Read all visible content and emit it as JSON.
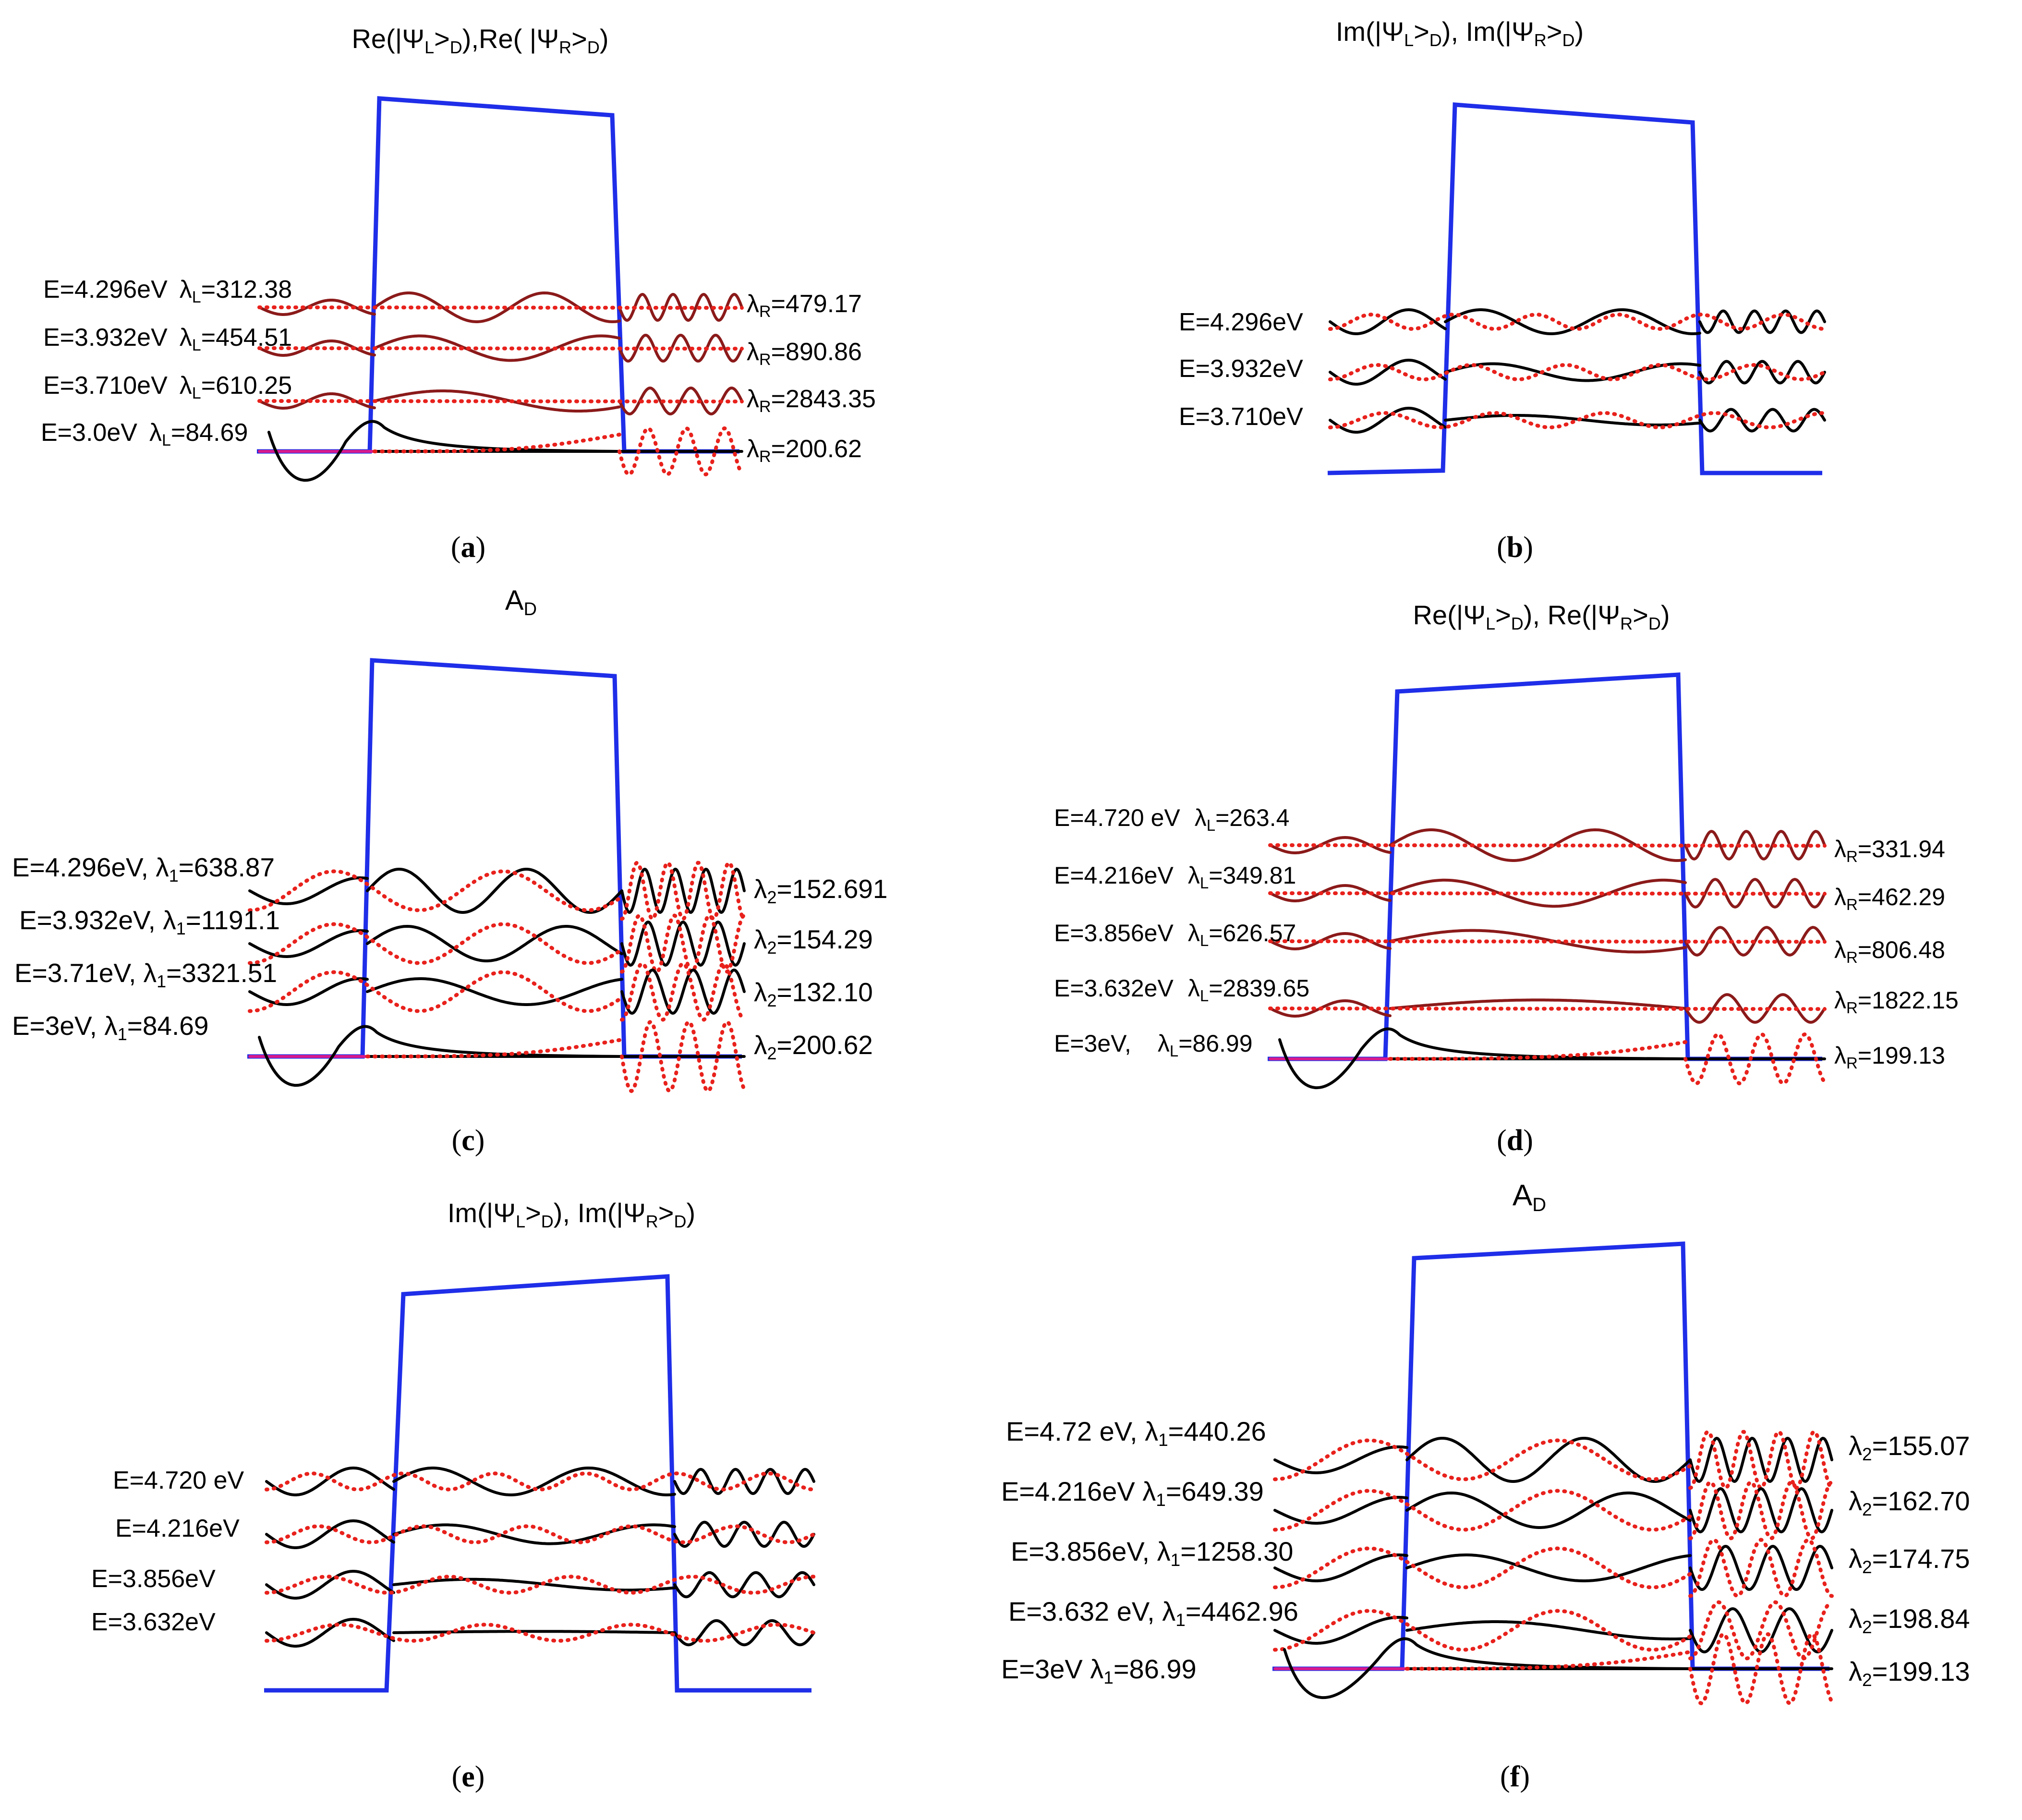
{
  "figure": {
    "colors": {
      "barrier": "#1f2ee8",
      "solid": "#000000",
      "dotted": "#e8211c",
      "baseline_pink": "#d81b8c"
    },
    "panels": [
      {
        "id": "a",
        "caption": "a",
        "title": {
          "a": "Re(|Ψ",
          "b": "L",
          "c": ">",
          "d": "D",
          "e": "),Re( |Ψ",
          "f": "R",
          "g": ">",
          "h": "D",
          "i": ")"
        },
        "curve_style": "overlay",
        "rows": [
          {
            "energy": "E=4.296eV",
            "lam_sym": "λ",
            "lam_sub_l": "L",
            "lam_l": "=312.38",
            "lam_sub_r": "R",
            "lam_r": "=479.17"
          },
          {
            "energy": "E=3.932eV",
            "lam_sym": "λ",
            "lam_sub_l": "L",
            "lam_l": "=454.51",
            "lam_sub_r": "R",
            "lam_r": "=890.86"
          },
          {
            "energy": "E=3.710eV",
            "lam_sym": "λ",
            "lam_sub_l": "L",
            "lam_l": "=610.25",
            "lam_sub_r": "R",
            "lam_r": "=2843.35"
          },
          {
            "energy": "E=3.0eV",
            "lam_sym": "λ",
            "lam_sub_l": "L",
            "lam_l": "=84.69",
            "lam_sub_r": "R",
            "lam_r": "=200.62"
          }
        ]
      },
      {
        "id": "b",
        "caption": "b",
        "title": {
          "a": "Im(|Ψ",
          "b": "L",
          "c": ">",
          "d": "D",
          "e": "), Im(|Ψ",
          "f": "R",
          "g": ">",
          "h": "D",
          "i": ")"
        },
        "curve_style": "im",
        "rows": [
          {
            "energy": "E=4.296eV"
          },
          {
            "energy": "E=3.932eV"
          },
          {
            "energy": "E=3.710eV"
          }
        ]
      },
      {
        "id": "c",
        "caption": "c",
        "title": {
          "a": "A",
          "b": "D"
        },
        "curve_style": "amp",
        "rows": [
          {
            "energy": "E=4.296eV, ",
            "lam_sym": "λ",
            "lam_sub_l": "1",
            "lam_l": "=638.87",
            "lam_sub_r": "2",
            "lam_r": "=152.691"
          },
          {
            "energy": "E=3.932eV, ",
            "lam_sym": "λ",
            "lam_sub_l": "1",
            "lam_l": "=1191.1",
            "lam_sub_r": "2",
            "lam_r": "=154.29"
          },
          {
            "energy": "E=3.71eV, ",
            "lam_sym": "λ",
            "lam_sub_l": "1",
            "lam_l": "=3321.51",
            "lam_sub_r": "2",
            "lam_r": "=132.10"
          },
          {
            "energy": "E=3eV, ",
            "lam_sym": "λ",
            "lam_sub_l": "1",
            "lam_l": "=84.69",
            "lam_sub_r": "2",
            "lam_r": "=200.62"
          }
        ]
      },
      {
        "id": "d",
        "caption": "d",
        "title": {
          "a": "Re(|Ψ",
          "b": "L",
          "c": ">",
          "d": "D",
          "e": "), Re(|Ψ",
          "f": "R",
          "g": ">",
          "h": "D",
          "i": ")"
        },
        "curve_style": "overlay",
        "rows": [
          {
            "energy": "E=4.720 eV",
            "lam_sym": "λ",
            "lam_sub_l": "L",
            "lam_l": "=263.4",
            "lam_sub_r": "R",
            "lam_r": "=331.94"
          },
          {
            "energy": "E=4.216eV",
            "lam_sym": "λ",
            "lam_sub_l": "L",
            "lam_l": "=349.81",
            "lam_sub_r": "R",
            "lam_r": "=462.29"
          },
          {
            "energy": "E=3.856eV",
            "lam_sym": "λ",
            "lam_sub_l": "L",
            "lam_l": "=626.57",
            "lam_sub_r": "R",
            "lam_r": "=806.48"
          },
          {
            "energy": "E=3.632eV",
            "lam_sym": "λ",
            "lam_sub_l": "L",
            "lam_l": "=2839.65",
            "lam_sub_r": "R",
            "lam_r": "=1822.15"
          },
          {
            "energy": "E=3eV,",
            "lam_sym": "λ",
            "lam_sub_l": "L",
            "lam_l": "=86.99",
            "lam_sub_r": "R",
            "lam_r": "=199.13"
          }
        ]
      },
      {
        "id": "e",
        "caption": "e",
        "title": {
          "a": "Im(|Ψ",
          "b": "L",
          "c": ">",
          "d": "D",
          "e": "), Im(|Ψ",
          "f": "R",
          "g": ">",
          "h": "D",
          "i": ")"
        },
        "curve_style": "im",
        "rows": [
          {
            "energy": "E=4.720 eV"
          },
          {
            "energy": "E=4.216eV"
          },
          {
            "energy": "E=3.856eV"
          },
          {
            "energy": "E=3.632eV"
          }
        ]
      },
      {
        "id": "f",
        "caption": "f",
        "title": {
          "a": "A",
          "b": "D"
        },
        "curve_style": "amp",
        "rows": [
          {
            "energy": "E=4.72 eV, ",
            "lam_sym": "λ",
            "lam_sub_l": "1",
            "lam_l": "=440.26",
            "lam_sub_r": "2",
            "lam_r": "=155.07"
          },
          {
            "energy": "E=4.216eV  ",
            "lam_sym": "λ",
            "lam_sub_l": "1",
            "lam_l": "=649.39",
            "lam_sub_r": "2",
            "lam_r": "=162.70"
          },
          {
            "energy": "E=3.856eV, ",
            "lam_sym": "λ",
            "lam_sub_l": "1",
            "lam_l": "=1258.30",
            "lam_sub_r": "2",
            "lam_r": "=174.75"
          },
          {
            "energy": "E=3.632 eV, ",
            "lam_sym": "λ",
            "lam_sub_l": "1",
            "lam_l": "=4462.96",
            "lam_sub_r": "2",
            "lam_r": "=198.84"
          },
          {
            "energy": "E=3eV ",
            "lam_sym": "λ",
            "lam_sub_l": "1",
            "lam_l": "=86.99",
            "lam_sub_r": "2",
            "lam_r": "=199.13"
          }
        ]
      }
    ]
  }
}
